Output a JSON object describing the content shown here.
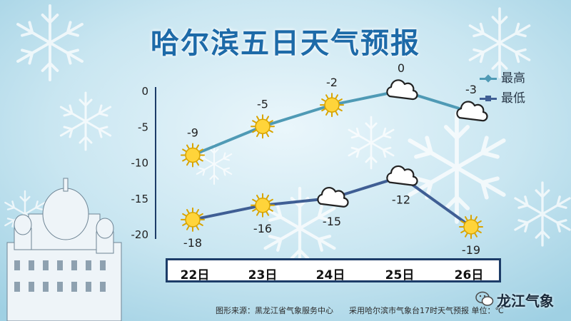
{
  "title": "哈尔滨五日天气预报",
  "chart_data": {
    "type": "line",
    "categories": [
      "22日",
      "23日",
      "24日",
      "25日",
      "26日"
    ],
    "series": [
      {
        "name": "最高",
        "values": [
          -9,
          -5,
          -2,
          0,
          -3
        ],
        "color": "#4f9ab5",
        "icons": [
          "sun",
          "sun",
          "sun",
          "cloud",
          "cloud"
        ]
      },
      {
        "name": "最低",
        "values": [
          -18,
          -16,
          -15,
          -12,
          -19
        ],
        "color": "#3f5e94",
        "icons": [
          "sun",
          "sun",
          "cloud",
          "cloud",
          "sun"
        ]
      }
    ],
    "yticks": [
      0,
      -5,
      -10,
      -15,
      -20
    ],
    "ylim": [
      -20,
      0
    ],
    "grid": false,
    "legend": "top-right"
  },
  "footer": {
    "source": "图形来源：黑龙江省气象服务中心",
    "note": "采用哈尔滨市气象台17时天气预报 单位：℃"
  },
  "brand": "龙江气象"
}
